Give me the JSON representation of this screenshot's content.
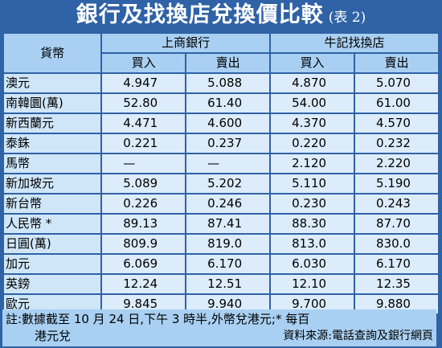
{
  "title": "銀行及找換店兌換價比較",
  "subtitle": "(表 2)",
  "header": {
    "currency_col": "貨幣",
    "bank1": "上商銀行",
    "bank2": "牛記找換店",
    "buy": "買入",
    "sell": "賣出"
  },
  "rows": [
    {
      "name": "澳元",
      "b1_buy": "4.947",
      "b1_sell": "5.088",
      "b2_buy": "4.870",
      "b2_sell": "5.070"
    },
    {
      "name": "南韓圜(萬)",
      "b1_buy": "52.80",
      "b1_sell": "61.40",
      "b2_buy": "54.00",
      "b2_sell": "61.00"
    },
    {
      "name": "新西蘭元",
      "b1_buy": "4.471",
      "b1_sell": "4.600",
      "b2_buy": "4.370",
      "b2_sell": "4.570"
    },
    {
      "name": "泰銖",
      "b1_buy": "0.221",
      "b1_sell": "0.237",
      "b2_buy": "0.220",
      "b2_sell": "0.232"
    },
    {
      "name": "馬幣",
      "b1_buy": "—",
      "b1_sell": "—",
      "b2_buy": "2.120",
      "b2_sell": "2.220"
    },
    {
      "name": "新加坡元",
      "b1_buy": "5.089",
      "b1_sell": "5.202",
      "b2_buy": "5.110",
      "b2_sell": "5.190"
    },
    {
      "name": "新台幣",
      "b1_buy": "0.226",
      "b1_sell": "0.246",
      "b2_buy": "0.230",
      "b2_sell": "0.243"
    },
    {
      "name": "人民幣 *",
      "b1_buy": "89.13",
      "b1_sell": "87.41",
      "b2_buy": "88.30",
      "b2_sell": "87.70"
    },
    {
      "name": "日圓(萬)",
      "b1_buy": "809.9",
      "b1_sell": "819.0",
      "b2_buy": "813.0",
      "b2_sell": "830.0"
    },
    {
      "name": "加元",
      "b1_buy": "6.069",
      "b1_sell": "6.170",
      "b2_buy": "6.030",
      "b2_sell": "6.170"
    },
    {
      "name": " 英鎊",
      "b1_buy": "12.24",
      "b1_sell": "12.51",
      "b2_buy": "12.10",
      "b2_sell": "12.35"
    },
    {
      "name": " 歐元",
      "b1_buy": "9.845",
      "b1_sell": "9.940",
      "b2_buy": "9.700",
      "b2_sell": "9.880"
    }
  ],
  "note": {
    "line1": "註:數據截至 10 月 24 日,下午 3 時半,外幣兌港元;* 每百",
    "line2": "港元兌",
    "source": "資料來源:電話查詢及銀行網頁"
  }
}
